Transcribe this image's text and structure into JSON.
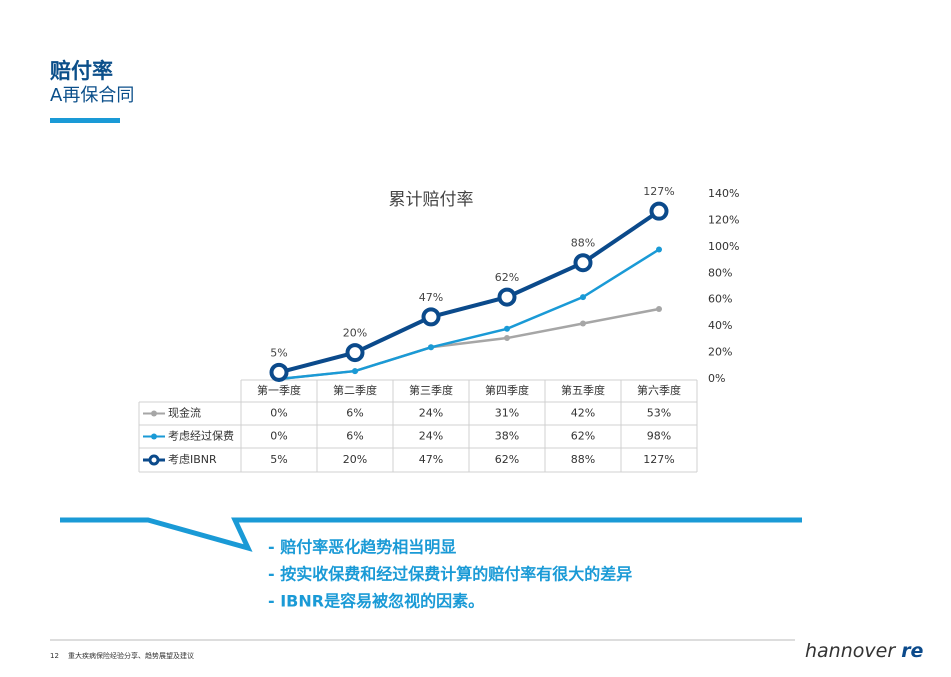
{
  "header": {
    "title": "赔付率",
    "subtitle": "A再保合同"
  },
  "chart_data": {
    "type": "line",
    "title": "累计赔付率",
    "categories": [
      "第一季度",
      "第二季度",
      "第三季度",
      "第四季度",
      "第五季度",
      "第六季度"
    ],
    "series": [
      {
        "name": "现金流",
        "color": "#a6a6a6",
        "values": [
          0,
          6,
          24,
          31,
          42,
          53
        ],
        "value_labels": [
          "0%",
          "6%",
          "24%",
          "31%",
          "42%",
          "53%"
        ]
      },
      {
        "name": "考虑经过保费",
        "color": "#1a9ad6",
        "values": [
          0,
          6,
          24,
          38,
          62,
          98
        ],
        "value_labels": [
          "0%",
          "6%",
          "24%",
          "38%",
          "62%",
          "98%"
        ]
      },
      {
        "name": "考虑IBNR",
        "color": "#0b4a8b",
        "values": [
          5,
          20,
          47,
          62,
          88,
          127
        ],
        "value_labels": [
          "5%",
          "20%",
          "47%",
          "62%",
          "88%",
          "127%"
        ]
      }
    ],
    "ylim": [
      0,
      140
    ],
    "yticks": [
      {
        "value": 0,
        "label": "0%"
      },
      {
        "value": 20,
        "label": "20%"
      },
      {
        "value": 40,
        "label": "40%"
      },
      {
        "value": 60,
        "label": "60%"
      },
      {
        "value": 80,
        "label": "80%"
      },
      {
        "value": 100,
        "label": "100%"
      },
      {
        "value": 120,
        "label": "120%"
      },
      {
        "value": 140,
        "label": "140%"
      }
    ]
  },
  "bullets": [
    "- 赔付率恶化趋势相当明显",
    "- 按实收保费和经过保费计算的赔付率有很大的差异",
    "- IBNR是容易被忽视的因素。"
  ],
  "footer": {
    "page": "12",
    "text": "重大疾病保险经验分享、趋势展望及建议",
    "logo_main": "hannover",
    "logo_mark": "re"
  }
}
